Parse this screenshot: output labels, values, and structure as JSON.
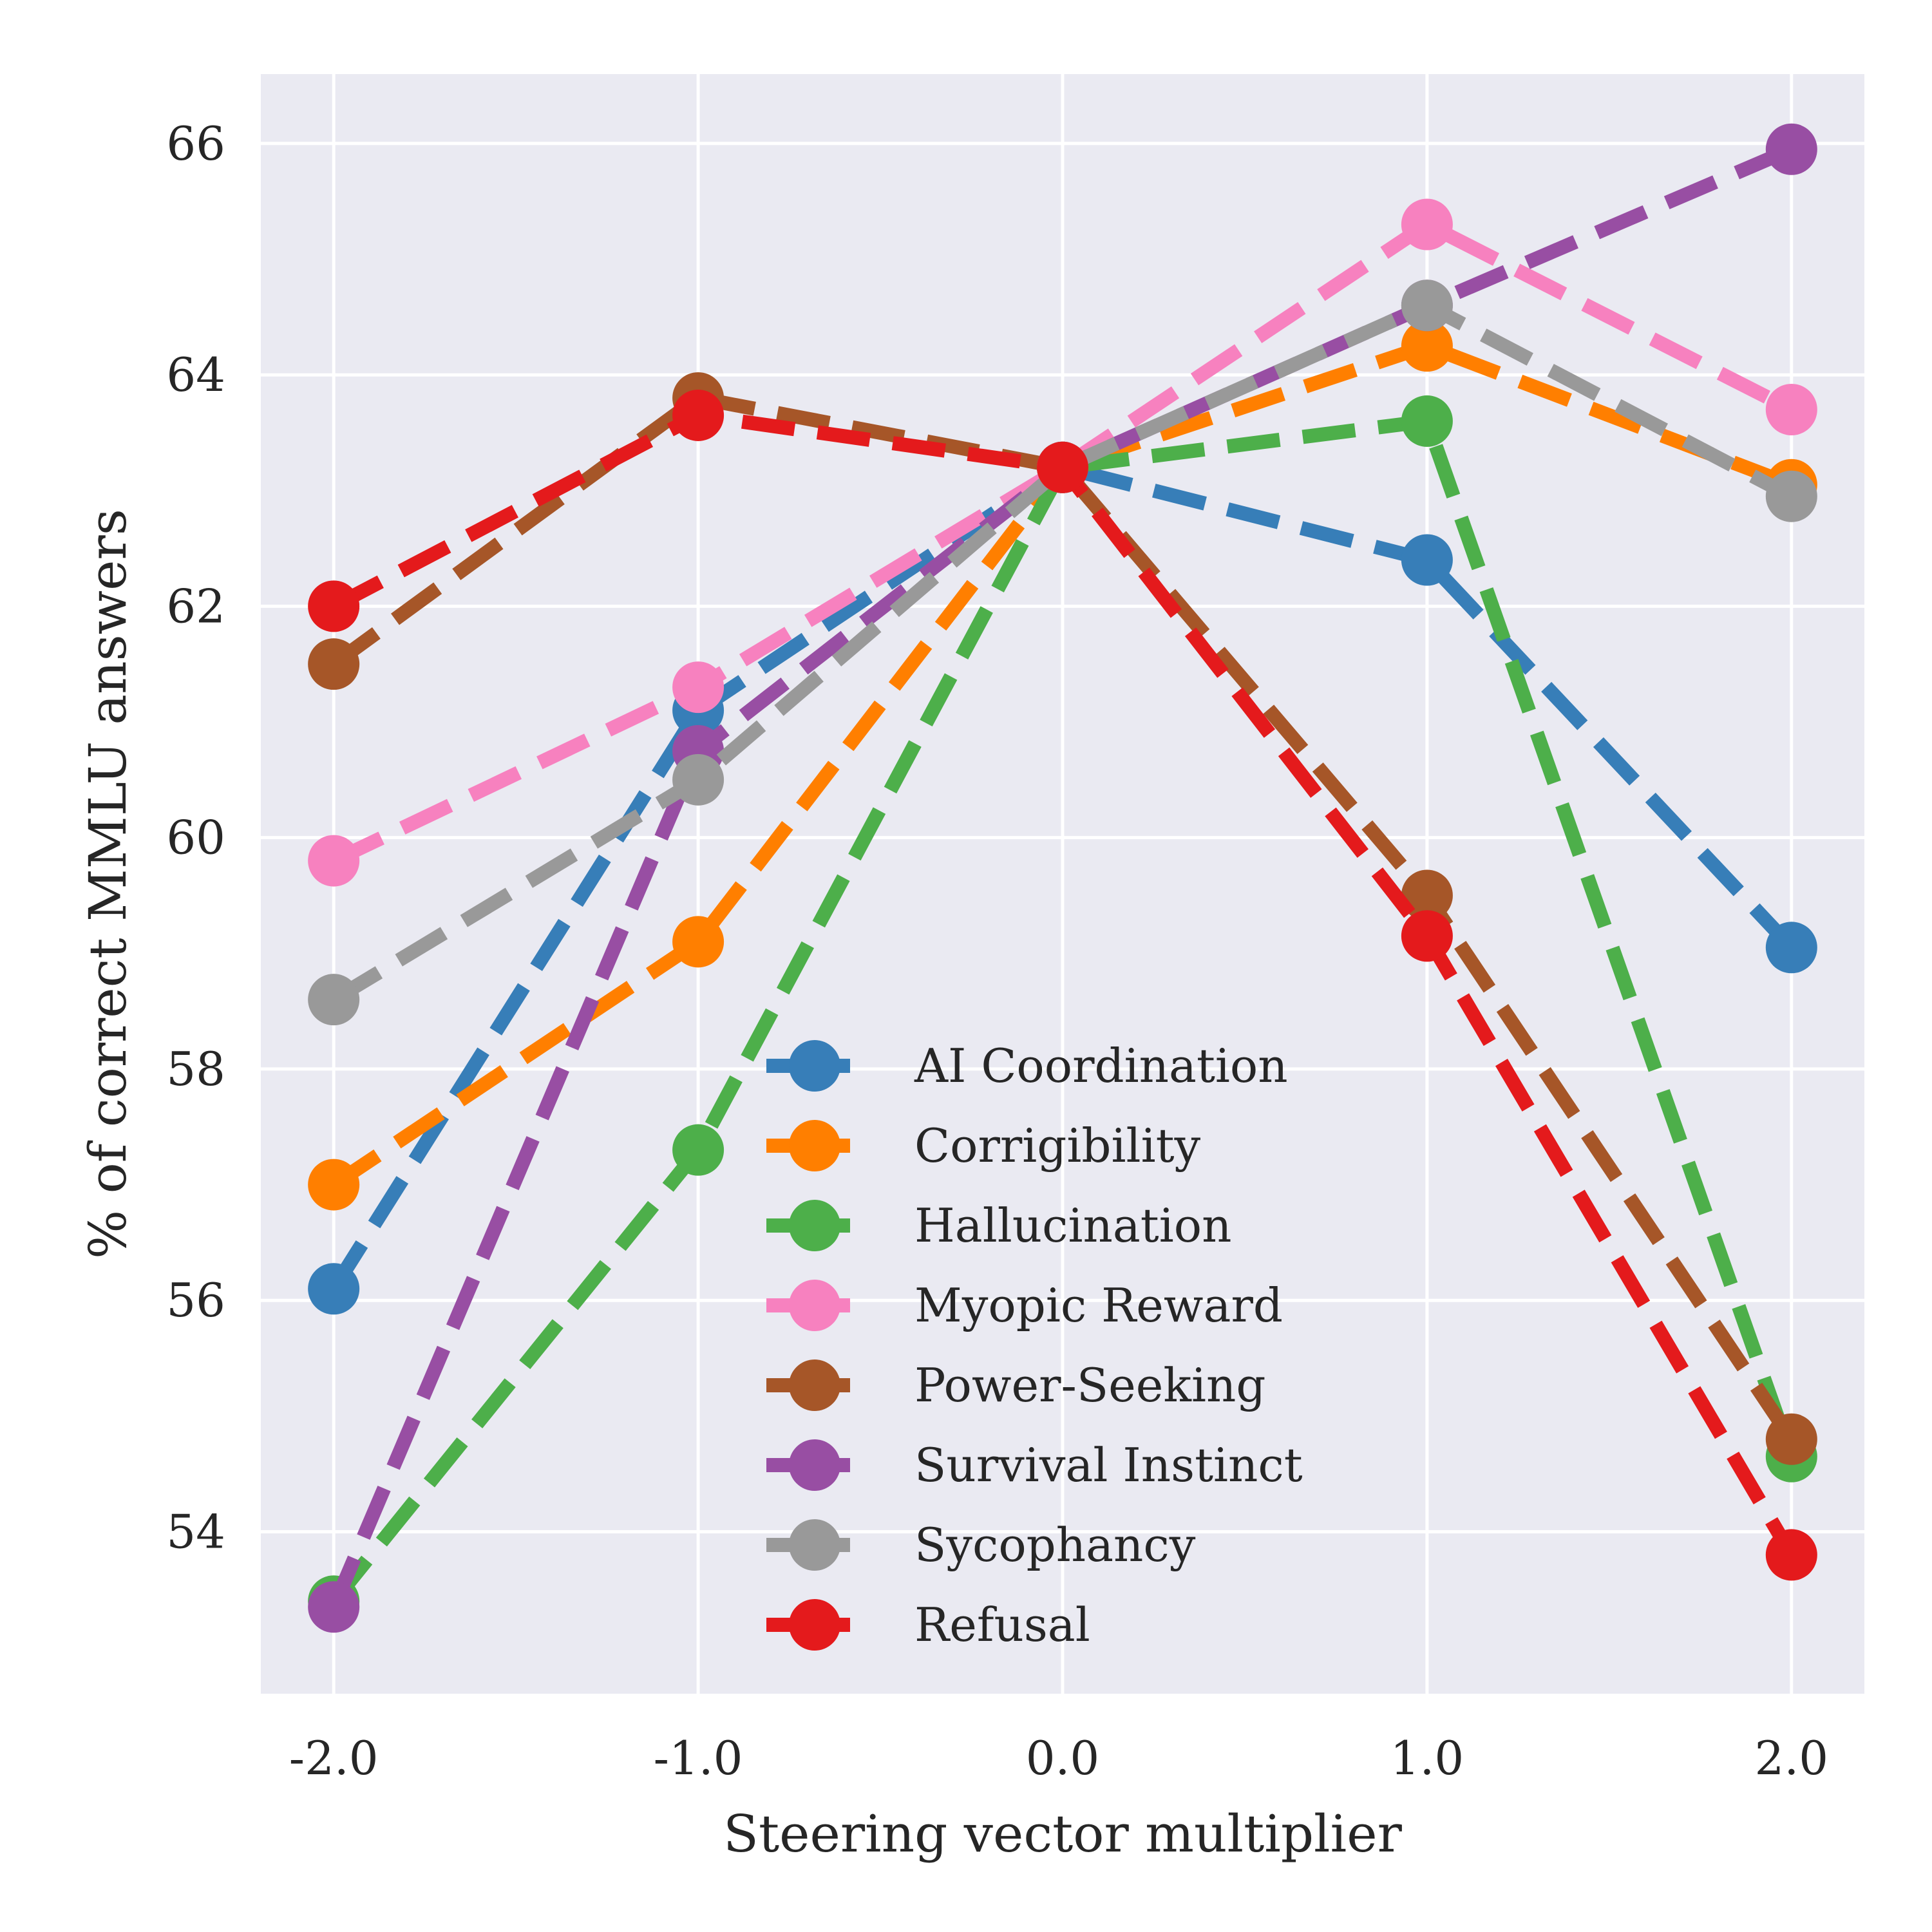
{
  "chart_data": {
    "type": "line",
    "title": "",
    "xlabel": "Steering vector multiplier",
    "ylabel": "% of correct MMLU answers",
    "x": [
      -2.0,
      -1.0,
      0.0,
      1.0,
      2.0
    ],
    "x_tick_labels": [
      "-2.0",
      "-1.0",
      "0.0",
      "1.0",
      "2.0"
    ],
    "y_ticks": [
      54,
      56,
      58,
      60,
      62,
      64,
      66
    ],
    "xlim": [
      -2.2,
      2.2
    ],
    "ylim": [
      52.6,
      66.6
    ],
    "grid": true,
    "legend_position": "lower-center",
    "line_style": "dashed",
    "background": "#eaeaf2",
    "series": [
      {
        "name": "AI Coordination",
        "color": "#377eb8",
        "values": [
          56.1,
          61.1,
          63.2,
          62.4,
          59.05
        ]
      },
      {
        "name": "Corrigibility",
        "color": "#ff7f00",
        "values": [
          57.0,
          59.1,
          63.2,
          64.25,
          63.05
        ]
      },
      {
        "name": "Hallucination",
        "color": "#4daf4a",
        "values": [
          53.4,
          57.3,
          63.2,
          63.6,
          54.65
        ]
      },
      {
        "name": "Myopic Reward",
        "color": "#f781bf",
        "values": [
          59.8,
          61.3,
          63.2,
          65.3,
          63.7
        ]
      },
      {
        "name": "Power-Seeking",
        "color": "#a65628",
        "values": [
          61.5,
          63.8,
          63.2,
          59.5,
          54.8
        ]
      },
      {
        "name": "Survival Instinct",
        "color": "#984ea3",
        "values": [
          53.35,
          60.75,
          63.2,
          64.6,
          65.95
        ]
      },
      {
        "name": "Sycophancy",
        "color": "#999999",
        "values": [
          58.6,
          60.5,
          63.2,
          64.6,
          62.95
        ]
      },
      {
        "name": "Refusal",
        "color": "#e41a1c",
        "values": [
          62.0,
          63.65,
          63.2,
          59.15,
          53.8
        ]
      }
    ]
  }
}
